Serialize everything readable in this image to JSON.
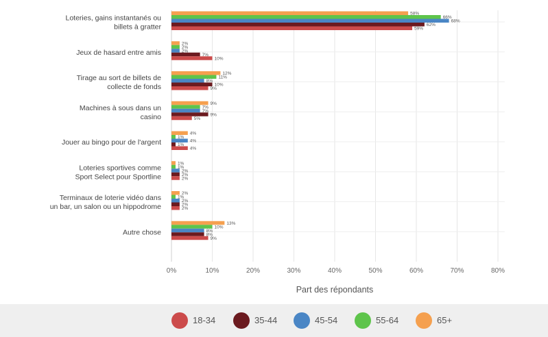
{
  "chart_data": {
    "type": "bar",
    "orientation": "horizontal",
    "categories": [
      [
        "Loteries, gains instantanés ou",
        "billets à gratter"
      ],
      [
        "Jeux de hasard entre amis"
      ],
      [
        "Tirage au sort de billets de",
        "collecte de fonds"
      ],
      [
        "Machines à sous dans un",
        "casino"
      ],
      [
        "Jouer au bingo pour de l'argent"
      ],
      [
        "Loteries sportives comme",
        "Sport Select pour Sportline"
      ],
      [
        "Terminaux de loterie vidéo dans",
        "un bar, un salon ou un hippodrome"
      ],
      [
        "Autre chose"
      ]
    ],
    "series": [
      {
        "name": "65+",
        "color": "#f5a04f",
        "values": [
          58,
          2,
          12,
          9,
          4,
          1,
          2,
          13
        ],
        "labels": [
          "58%",
          "2%",
          "12%",
          "9%",
          "4%",
          "1%",
          "2%",
          "13%"
        ]
      },
      {
        "name": "55-64",
        "color": "#5ec44b",
        "values": [
          66,
          2,
          11,
          7,
          1,
          1,
          1,
          10
        ],
        "labels": [
          "66%",
          "2%",
          "11%",
          "7%",
          "1%",
          "1%",
          "1%",
          "10%"
        ]
      },
      {
        "name": "45-54",
        "color": "#4a86c5",
        "values": [
          68,
          2,
          8,
          7,
          4,
          2,
          2,
          8
        ],
        "labels": [
          "68%",
          "2%",
          "8%",
          "7%",
          "4%",
          "2%",
          "2%",
          "8%"
        ]
      },
      {
        "name": "35-44",
        "color": "#6b1a1f",
        "values": [
          62,
          7,
          10,
          9,
          1,
          2,
          2,
          8
        ],
        "labels": [
          "62%",
          "7%",
          "10%",
          "9%",
          "1%",
          "2%",
          "2%",
          "8%"
        ]
      },
      {
        "name": "18-34",
        "color": "#cc4b4b",
        "values": [
          59,
          10,
          9,
          5,
          4,
          2,
          2,
          9
        ],
        "labels": [
          "59%",
          "10%",
          "9%",
          "5%",
          "4%",
          "2%",
          "2%",
          "9%"
        ]
      }
    ],
    "xlim": [
      0,
      82
    ],
    "xticks": [
      "0%",
      "10%",
      "20%",
      "30%",
      "40%",
      "50%",
      "60%",
      "70%",
      "80%"
    ],
    "xlabel": "Part des répondants",
    "grid": true,
    "legend_placement": "bottom",
    "legend_order": [
      "18-34",
      "35-44",
      "45-54",
      "55-64",
      "65+"
    ]
  }
}
